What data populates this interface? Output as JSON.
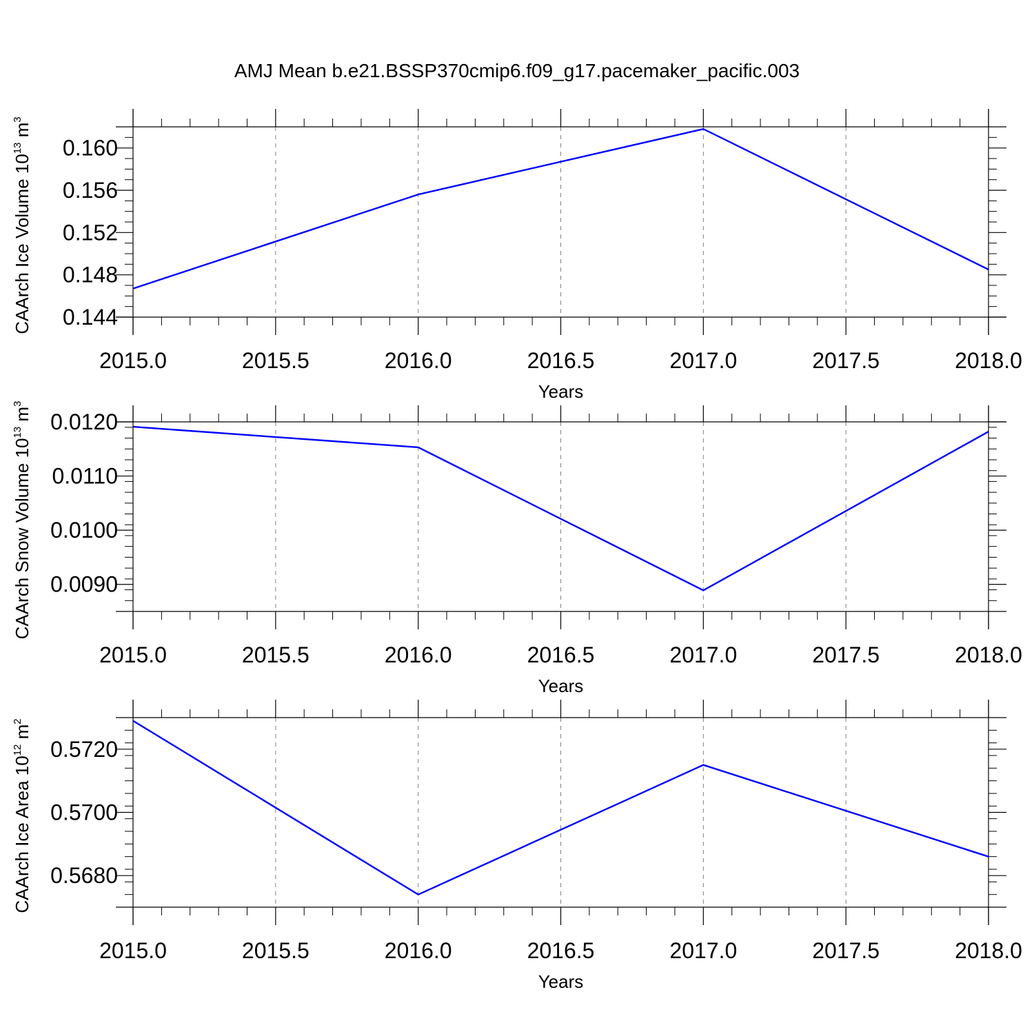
{
  "figure": {
    "title": "AMJ Mean b.e21.BSSP370cmip6.f09_g17.pacemaker_pacific.003",
    "line_color": "#0000ff",
    "grid_color": "#808080"
  },
  "chart_data": [
    {
      "type": "line",
      "x": [
        2015.0,
        2016.0,
        2017.0,
        2018.0
      ],
      "series": [
        {
          "values": [
            0.1467,
            0.1556,
            0.1618,
            0.1485
          ]
        }
      ],
      "xlabel": "Years",
      "ylabel": {
        "main": "CAArch Ice Volume 10",
        "exp": "13",
        "unit": " m",
        "unit_exp": "3"
      },
      "xlim": [
        2015.0,
        2018.0
      ],
      "ylim": [
        0.144,
        0.162
      ],
      "xticks": [
        2015.0,
        2015.5,
        2016.0,
        2016.5,
        2017.0,
        2017.5,
        2018.0
      ],
      "xtick_labels": [
        "2015.0",
        "2015.5",
        "2016.0",
        "2016.5",
        "2017.0",
        "2017.5",
        "2018.0"
      ],
      "yticks": [
        0.144,
        0.148,
        0.152,
        0.156,
        0.16
      ],
      "ytick_labels": [
        "0.144",
        "0.148",
        "0.152",
        "0.156",
        "0.160"
      ],
      "yminor_step": 0.001,
      "grid": "vertical dashed"
    },
    {
      "type": "line",
      "x": [
        2015.0,
        2016.0,
        2017.0,
        2018.0
      ],
      "series": [
        {
          "values": [
            0.01191,
            0.01153,
            0.00889,
            0.01182
          ]
        }
      ],
      "xlabel": "Years",
      "ylabel": {
        "main": "CAArch Snow Volume 10",
        "exp": "13",
        "unit": " m",
        "unit_exp": "3"
      },
      "xlim": [
        2015.0,
        2018.0
      ],
      "ylim": [
        0.0085,
        0.012
      ],
      "xticks": [
        2015.0,
        2015.5,
        2016.0,
        2016.5,
        2017.0,
        2017.5,
        2018.0
      ],
      "xtick_labels": [
        "2015.0",
        "2015.5",
        "2016.0",
        "2016.5",
        "2017.0",
        "2017.5",
        "2018.0"
      ],
      "yticks": [
        0.009,
        0.01,
        0.011,
        0.012
      ],
      "ytick_labels": [
        "0.0090",
        "0.0100",
        "0.0110",
        "0.0120"
      ],
      "yminor_step": 0.0002,
      "grid": "vertical dashed"
    },
    {
      "type": "line",
      "x": [
        2015.0,
        2016.0,
        2017.0,
        2018.0
      ],
      "series": [
        {
          "values": [
            0.5729,
            0.5674,
            0.5715,
            0.5686
          ]
        }
      ],
      "xlabel": "Years",
      "ylabel": {
        "main": "CAArch Ice Area 10",
        "exp": "12",
        "unit": " m",
        "unit_exp": "2"
      },
      "xlim": [
        2015.0,
        2018.0
      ],
      "ylim": [
        0.567,
        0.573
      ],
      "xticks": [
        2015.0,
        2015.5,
        2016.0,
        2016.5,
        2017.0,
        2017.5,
        2018.0
      ],
      "xtick_labels": [
        "2015.0",
        "2015.5",
        "2016.0",
        "2016.5",
        "2017.0",
        "2017.5",
        "2018.0"
      ],
      "yticks": [
        0.568,
        0.57,
        0.572
      ],
      "ytick_labels": [
        "0.5680",
        "0.5700",
        "0.5720"
      ],
      "yminor_step": 0.0004,
      "grid": "vertical dashed"
    }
  ]
}
